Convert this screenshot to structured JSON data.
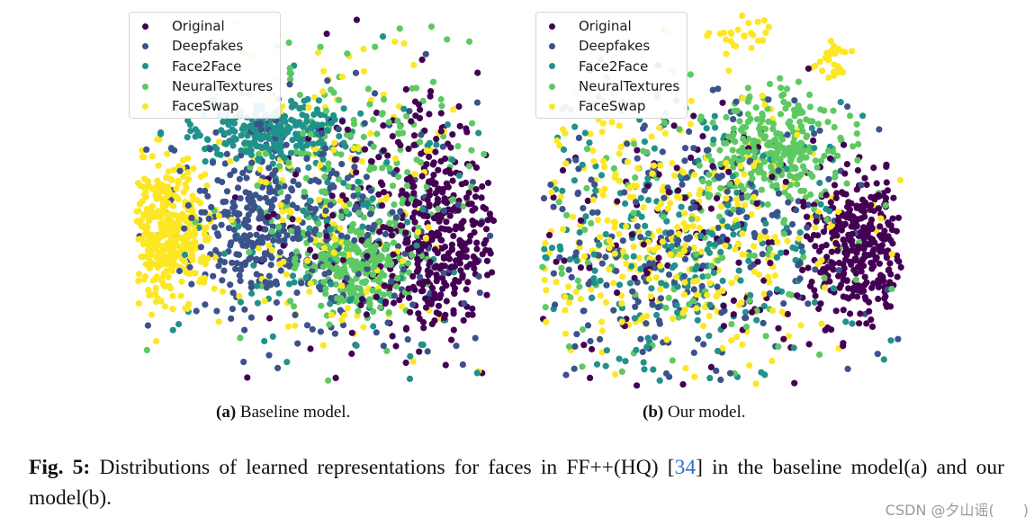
{
  "legend": {
    "entries": [
      {
        "label": "Original",
        "color": "#440154"
      },
      {
        "label": "Deepfakes",
        "color": "#3b528b"
      },
      {
        "label": "Face2Face",
        "color": "#21918c"
      },
      {
        "label": "NeuralTextures",
        "color": "#5ec962"
      },
      {
        "label": "FaceSwap",
        "color": "#fde725"
      }
    ]
  },
  "subcaptions": {
    "a": {
      "tag": "(a)",
      "text": "Baseline model."
    },
    "b": {
      "tag": "(b)",
      "text": "Our model."
    }
  },
  "caption": {
    "label": "Fig. 5:",
    "text_before": "Distributions of learned representations for faces in FF++(HQ) [",
    "citation": "34",
    "text_after": "] in the baseline model(a) and our model(b)."
  },
  "watermark": "CSDN @夕山谣(　　)",
  "chart_data": [
    {
      "type": "scatter",
      "series": [
        {
          "name": "Original",
          "cluster": "right",
          "color": "#440154"
        },
        {
          "name": "Deepfakes",
          "cluster": "center-left",
          "color": "#3b528b"
        },
        {
          "name": "Face2Face",
          "cluster": "top-left",
          "color": "#21918c"
        },
        {
          "name": "NeuralTextures",
          "cluster": "center-right",
          "color": "#5ec962"
        },
        {
          "name": "FaceSwap",
          "cluster": "left",
          "color": "#fde725"
        }
      ],
      "legend_position": "top-left",
      "axes": "off"
    },
    {
      "type": "scatter",
      "series": [
        {
          "name": "Original",
          "cluster": "right",
          "color": "#440154"
        },
        {
          "name": "Deepfakes",
          "cluster": "mixed-center",
          "color": "#3b528b"
        },
        {
          "name": "Face2Face",
          "cluster": "mixed-center",
          "color": "#21918c"
        },
        {
          "name": "NeuralTextures",
          "cluster": "top-right",
          "color": "#5ec962"
        },
        {
          "name": "FaceSwap",
          "cluster": "mixed-center",
          "color": "#fde725"
        }
      ],
      "legend_position": "top-left",
      "axes": "off"
    }
  ]
}
